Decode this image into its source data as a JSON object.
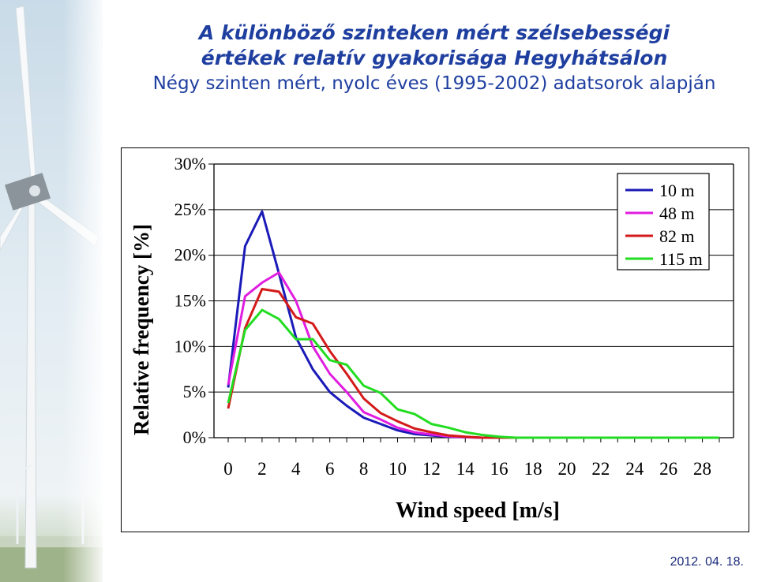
{
  "header": {
    "title_line1": "A különböző szinteken mért szélsebességi",
    "title_line2": "értékek relatív gyakorisága Hegyhátsálon",
    "subtitle": "Négy szinten mért, nyolc éves (1995-2002) adatsorok alapján"
  },
  "footer": {
    "date": "2012. 04. 18."
  },
  "chart_data": {
    "type": "line",
    "xlabel": "Wind speed [m/s]",
    "ylabel": "Relative frequency [%]",
    "xlim": [
      0,
      29
    ],
    "ylim": [
      0,
      30
    ],
    "x_ticks": [
      0,
      2,
      4,
      6,
      8,
      10,
      12,
      14,
      16,
      18,
      20,
      22,
      24,
      26,
      28
    ],
    "y_ticks": [
      "0%",
      "5%",
      "10%",
      "15%",
      "20%",
      "25%",
      "30%"
    ],
    "grid": {
      "horizontal": true,
      "vertical": false
    },
    "legend_position": "top-right",
    "x": [
      0,
      1,
      2,
      3,
      4,
      5,
      6,
      7,
      8,
      9,
      10,
      11,
      12,
      13,
      14,
      15,
      16,
      17,
      18,
      19,
      20,
      21,
      22,
      23,
      24,
      25,
      26,
      27,
      28,
      29
    ],
    "series": [
      {
        "name": "10 m",
        "color": "#1a1ab8",
        "values": [
          5.5,
          21,
          24.8,
          18,
          11,
          7.5,
          5,
          3.5,
          2.2,
          1.5,
          0.8,
          0.4,
          0.25,
          0.1,
          0.05,
          0,
          0,
          0,
          0,
          0,
          0,
          0,
          0,
          0,
          0,
          0,
          0,
          0,
          0,
          0
        ]
      },
      {
        "name": "48 m",
        "color": "#e01ee0",
        "values": [
          5.8,
          15.5,
          17,
          18.1,
          15,
          10,
          7,
          5,
          2.8,
          2,
          1.1,
          0.6,
          0.35,
          0.15,
          0.05,
          0,
          0,
          0,
          0,
          0,
          0,
          0,
          0,
          0,
          0,
          0,
          0,
          0,
          0,
          0
        ]
      },
      {
        "name": "82 m",
        "color": "#d41a1a",
        "values": [
          3.2,
          12,
          16.3,
          16,
          13.2,
          12.5,
          9.5,
          7,
          4.3,
          2.7,
          1.8,
          1,
          0.6,
          0.25,
          0.1,
          0,
          0,
          0,
          0,
          0,
          0,
          0,
          0,
          0,
          0,
          0,
          0,
          0,
          0,
          0
        ]
      },
      {
        "name": "115 m",
        "color": "#22dd22",
        "values": [
          3.8,
          11.8,
          14,
          13,
          10.8,
          10.8,
          8.5,
          8,
          5.7,
          4.9,
          3.1,
          2.6,
          1.5,
          1.1,
          0.6,
          0.3,
          0.1,
          0,
          0,
          0,
          0,
          0,
          0,
          0,
          0,
          0,
          0,
          0,
          0,
          0
        ]
      }
    ]
  }
}
